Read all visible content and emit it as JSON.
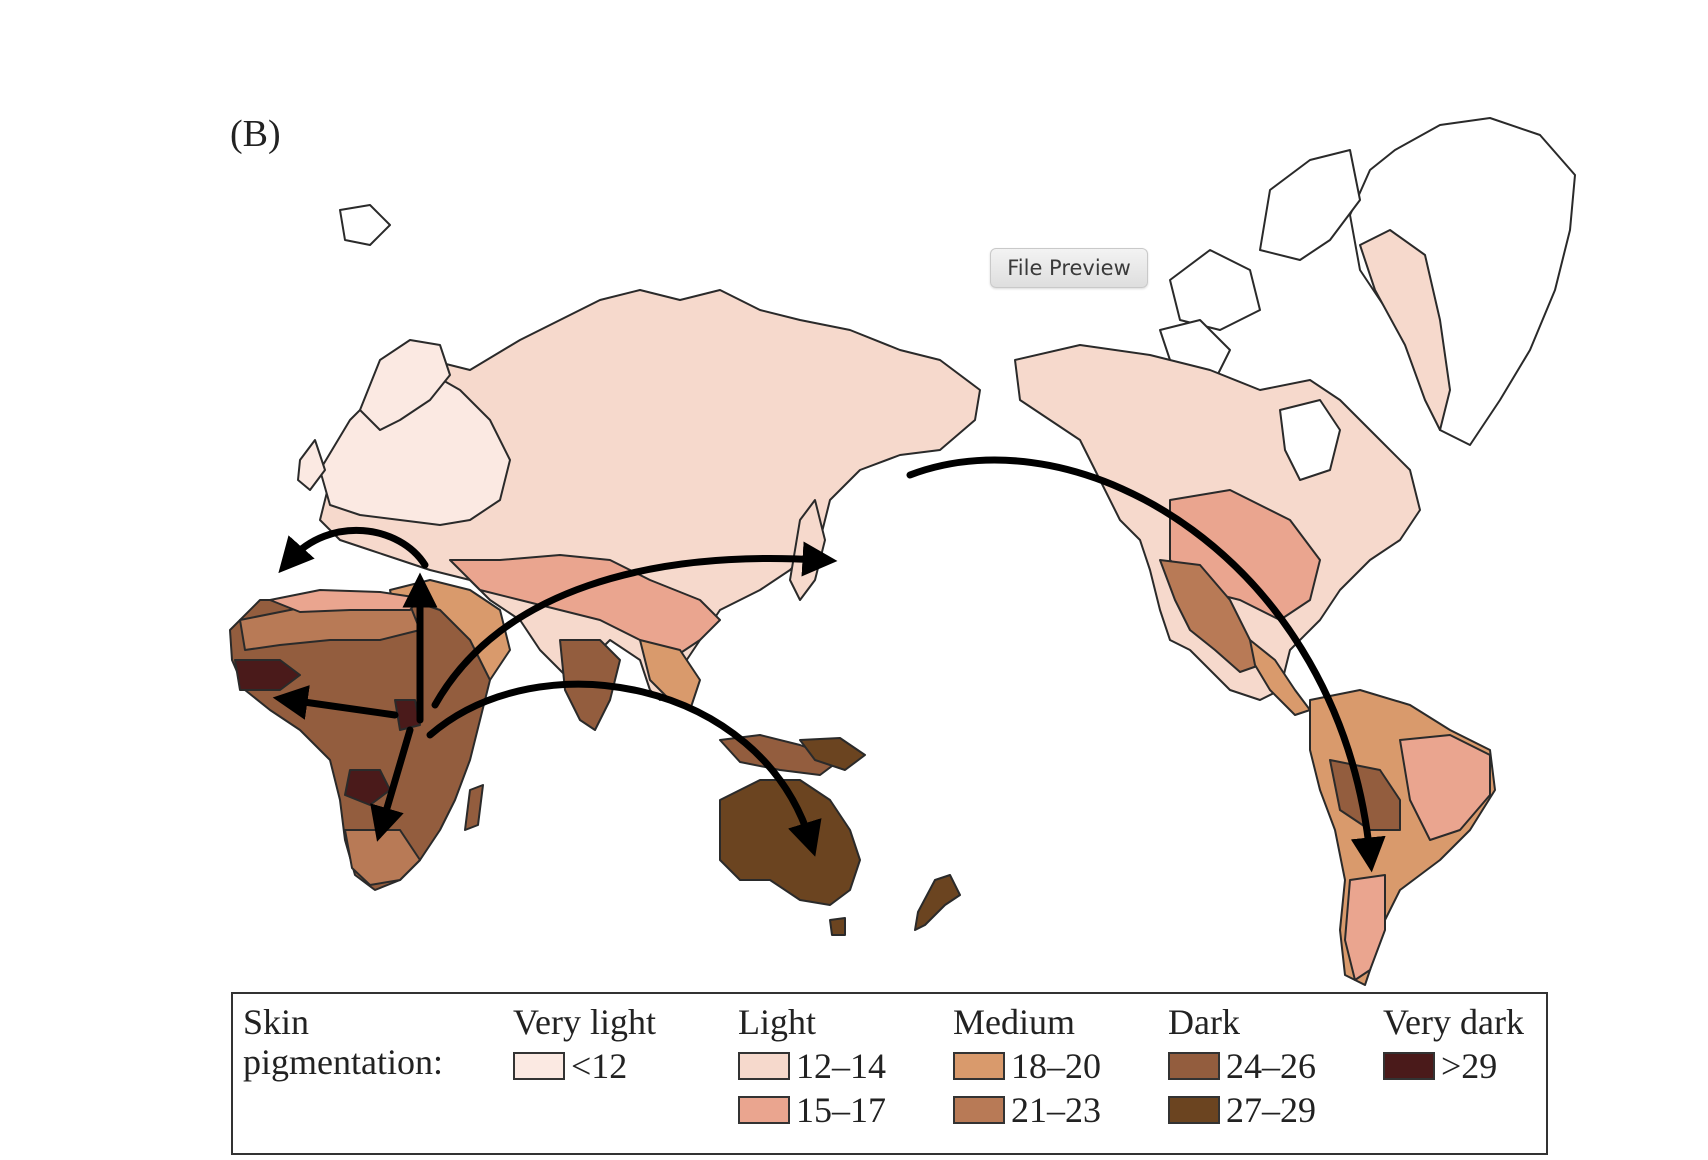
{
  "panel_label": "(B)",
  "file_preview_button": "File Preview",
  "legend": {
    "title_line1": "Skin",
    "title_line2": "pigmentation:",
    "groups": [
      {
        "name": "Very light",
        "entries": [
          {
            "range": "<12",
            "color": "#fbe9e2"
          }
        ]
      },
      {
        "name": "Light",
        "entries": [
          {
            "range": "12–14",
            "color": "#f6d9cc"
          },
          {
            "range": "15–17",
            "color": "#eaa58f"
          }
        ]
      },
      {
        "name": "Medium",
        "entries": [
          {
            "range": "18–20",
            "color": "#d99a6c"
          },
          {
            "range": "21–23",
            "color": "#b87a56"
          }
        ]
      },
      {
        "name": "Dark",
        "entries": [
          {
            "range": "24–26",
            "color": "#935d3e"
          },
          {
            "range": "27–29",
            "color": "#6b4420"
          }
        ]
      },
      {
        "name": "Very dark",
        "entries": [
          {
            "range": ">29",
            "color": "#4a1a1a"
          }
        ]
      }
    ]
  },
  "colors": {
    "outline": "#2a2a2a",
    "arrow": "#000000"
  }
}
